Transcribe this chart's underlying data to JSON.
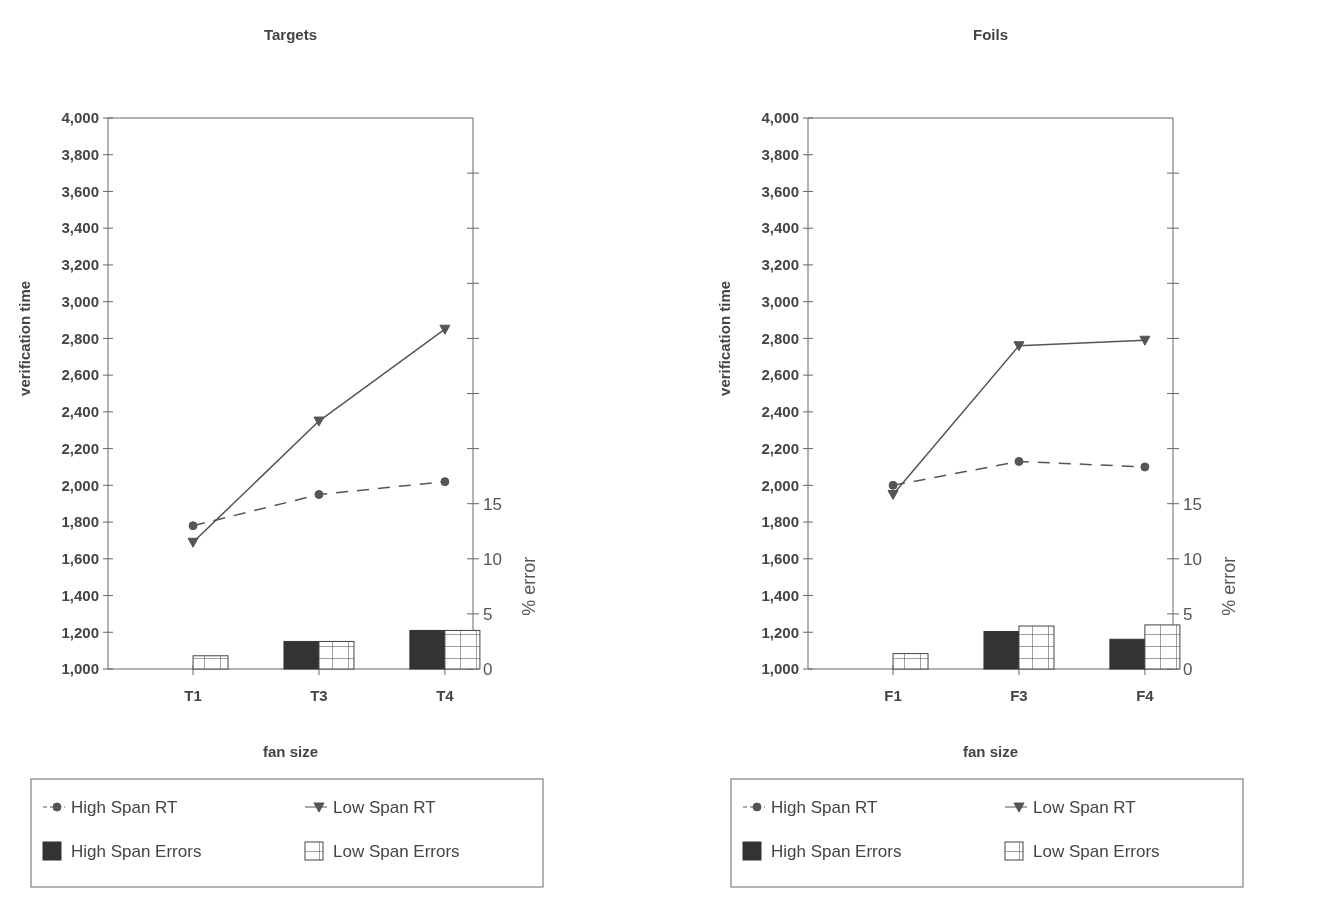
{
  "chart_data": [
    {
      "type": "line",
      "title": "Targets",
      "xlabel": "fan size",
      "ylabel": "verification time",
      "y2label": "% error",
      "categories": [
        "T1",
        "T3",
        "T4"
      ],
      "ylim": [
        1000,
        4000
      ],
      "yticks": [
        {
          "value": 1000,
          "label": "1,000"
        },
        {
          "value": 1200,
          "label": "1,200"
        },
        {
          "value": 1400,
          "label": "1,400"
        },
        {
          "value": 1600,
          "label": "1,600"
        },
        {
          "value": 1800,
          "label": "1,800"
        },
        {
          "value": 2000,
          "label": "2,000"
        },
        {
          "value": 2200,
          "label": "2,200"
        },
        {
          "value": 2400,
          "label": "2,400"
        },
        {
          "value": 2600,
          "label": "2,600"
        },
        {
          "value": 2800,
          "label": "2,800"
        },
        {
          "value": 3000,
          "label": "3,000"
        },
        {
          "value": 3200,
          "label": "3,200"
        },
        {
          "value": 3400,
          "label": "3,400"
        },
        {
          "value": 3600,
          "label": "3,600"
        },
        {
          "value": 3800,
          "label": "3,800"
        },
        {
          "value": 4000,
          "label": "4,000"
        }
      ],
      "y2lim": [
        0,
        50
      ],
      "y2ticks": [
        0,
        5,
        10,
        15,
        {
          "value": 20,
          "label": null
        },
        {
          "value": 25,
          "label": null
        },
        {
          "value": 30,
          "label": null
        },
        {
          "value": 35,
          "label": null
        },
        {
          "value": 40,
          "label": null
        },
        {
          "value": 45,
          "label": null
        }
      ],
      "legend": "bottom",
      "grid": false,
      "series": [
        {
          "name": "High Span RT",
          "color": "#555555",
          "marker": "circle",
          "line_style": "dashed",
          "values": [
            1780,
            1950,
            2020
          ]
        },
        {
          "name": "Low Span RT",
          "color": "#555555",
          "marker": "triangle",
          "line_style": "solid",
          "values": [
            1690,
            2350,
            2850
          ]
        },
        {
          "name": "High Span Errors",
          "type": "bar",
          "axis": "y2",
          "color": "#333333",
          "values": [
            0,
            2.5,
            3.5
          ]
        },
        {
          "name": "Low Span Errors",
          "type": "bar",
          "axis": "y2",
          "color": "#444444",
          "values": [
            1.2,
            2.5,
            3.5
          ]
        }
      ]
    },
    {
      "type": "line",
      "title": "Foils",
      "xlabel": "fan size",
      "ylabel": "verification time",
      "y2label": "% error",
      "categories": [
        "F1",
        "F3",
        "F4"
      ],
      "ylim": [
        1000,
        4000
      ],
      "yticks": [
        {
          "value": 1000,
          "label": "1,000"
        },
        {
          "value": 1200,
          "label": "1,200"
        },
        {
          "value": 1400,
          "label": "1,400"
        },
        {
          "value": 1600,
          "label": "1,600"
        },
        {
          "value": 1800,
          "label": "1,800"
        },
        {
          "value": 2000,
          "label": "2,000"
        },
        {
          "value": 2200,
          "label": "2,200"
        },
        {
          "value": 2400,
          "label": "2,400"
        },
        {
          "value": 2600,
          "label": "2,600"
        },
        {
          "value": 2800,
          "label": "2,800"
        },
        {
          "value": 3000,
          "label": "3,000"
        },
        {
          "value": 3200,
          "label": "3,200"
        },
        {
          "value": 3400,
          "label": "3,400"
        },
        {
          "value": 3600,
          "label": "3,600"
        },
        {
          "value": 3800,
          "label": "3,800"
        },
        {
          "value": 4000,
          "label": "4,000"
        }
      ],
      "y2lim": [
        0,
        50
      ],
      "y2ticks": [
        0,
        5,
        10,
        15,
        {
          "value": 20,
          "label": null
        },
        {
          "value": 25,
          "label": null
        },
        {
          "value": 30,
          "label": null
        },
        {
          "value": 35,
          "label": null
        },
        {
          "value": 40,
          "label": null
        },
        {
          "value": 45,
          "label": null
        }
      ],
      "legend": "bottom",
      "grid": false,
      "series": [
        {
          "name": "High Span RT",
          "color": "#555555",
          "marker": "circle",
          "line_style": "dashed",
          "values": [
            2000,
            2130,
            2100
          ]
        },
        {
          "name": "Low Span RT",
          "color": "#555555",
          "marker": "triangle",
          "line_style": "solid",
          "values": [
            1950,
            2760,
            2790
          ]
        },
        {
          "name": "High Span Errors",
          "type": "bar",
          "axis": "y2",
          "color": "#333333",
          "values": [
            0,
            3.4,
            2.7
          ]
        },
        {
          "name": "Low Span Errors",
          "type": "bar",
          "axis": "y2",
          "color": "#444444",
          "values": [
            1.4,
            3.9,
            4.0
          ]
        }
      ]
    }
  ]
}
